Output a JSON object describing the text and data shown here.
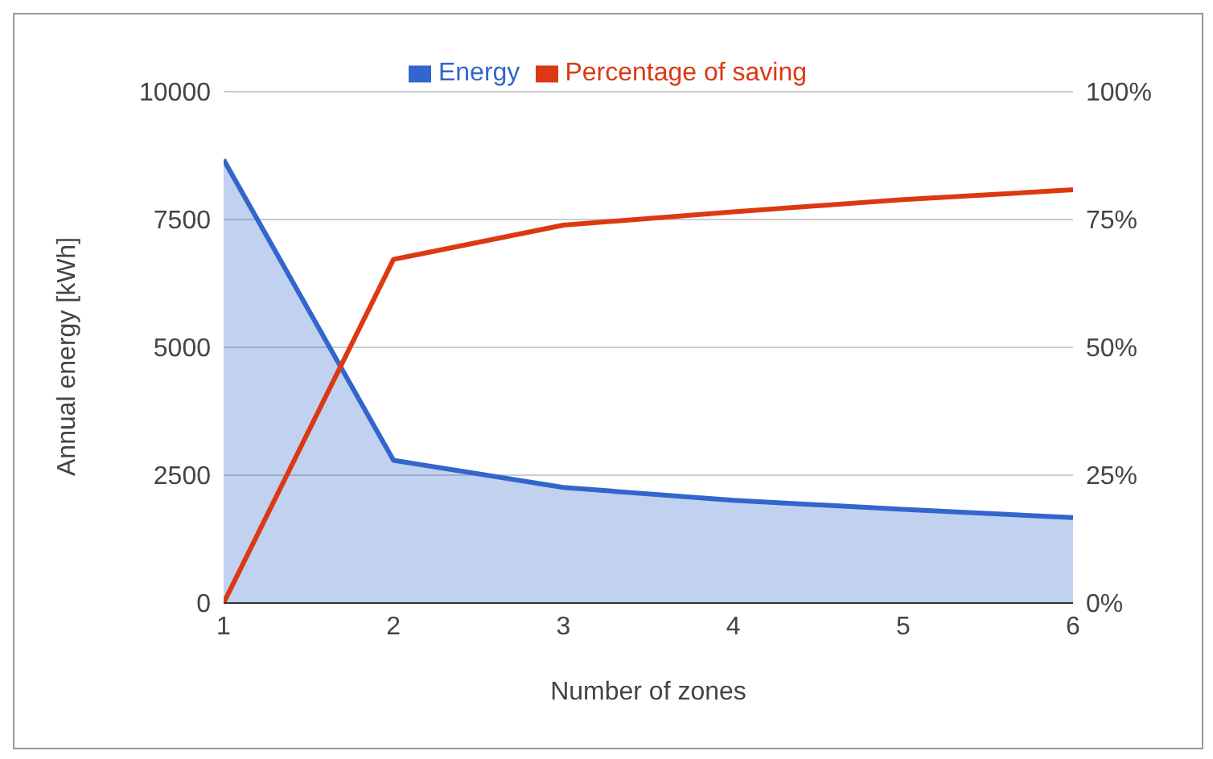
{
  "chart_data": {
    "type": "line",
    "xlabel": "Number of zones",
    "ylabel": "Annual energy [kWh]",
    "x": [
      1,
      2,
      3,
      4,
      5,
      6
    ],
    "xlim": [
      1,
      6
    ],
    "xticks": [
      1,
      2,
      3,
      4,
      5,
      6
    ],
    "ylim": [
      0,
      10000
    ],
    "yticks": [
      0,
      2500,
      5000,
      7500,
      10000
    ],
    "y2lim": [
      0,
      100
    ],
    "y2ticks": [
      {
        "value": 0,
        "label": "0%"
      },
      {
        "value": 25,
        "label": "25%"
      },
      {
        "value": 50,
        "label": "50%"
      },
      {
        "value": 75,
        "label": "75%"
      },
      {
        "value": 100,
        "label": "100%"
      }
    ],
    "series": [
      {
        "name": "Energy",
        "type": "area",
        "color": "#3366cc",
        "values": [
          8670,
          2790,
          2260,
          2010,
          1830,
          1670
        ]
      },
      {
        "name": "Percentage of saving",
        "axis": "y2",
        "color": "#dc3912",
        "values": [
          0,
          67.2,
          73.9,
          76.5,
          78.9,
          80.8
        ]
      }
    ],
    "grid": "y",
    "legend": "top",
    "marker": "none",
    "line_style": "solid"
  }
}
